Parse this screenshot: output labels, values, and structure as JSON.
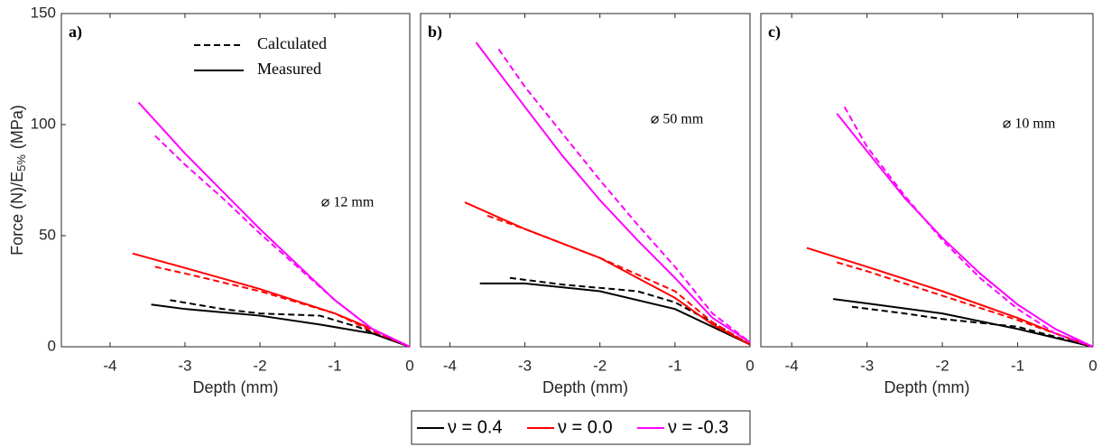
{
  "chart_data": [
    {
      "type": "line",
      "annotation": "a)",
      "diameter": "⌀ 12 mm",
      "xlabel": "Depth (mm)",
      "ylabel": {
        "main": "Force (N)/E",
        "sub": "5%",
        "unit": "(MPa)"
      },
      "xlim": [
        -4.65,
        0
      ],
      "xticks": [
        -4,
        -3,
        -2,
        -1,
        0
      ],
      "ylim": [
        0,
        150
      ],
      "yticks": [
        0,
        50,
        100,
        150
      ],
      "line_styles": [
        {
          "label": "Calculated",
          "dash": true
        },
        {
          "label": "Measured",
          "dash": false
        }
      ],
      "series": [
        {
          "name": "ν = 0.4",
          "color": "#000000",
          "dash": false,
          "x": [
            -3.45,
            -3,
            -2,
            -1.2,
            -0.5,
            0
          ],
          "values": [
            19,
            17,
            14,
            10,
            6,
            0
          ]
        },
        {
          "name": "ν = 0.4",
          "color": "#000000",
          "dash": true,
          "x": [
            -3.2,
            -2.5,
            -2,
            -1.2,
            -0.7,
            0
          ],
          "values": [
            21,
            17,
            15,
            14,
            9,
            0
          ]
        },
        {
          "name": "ν = 0.0",
          "color": "#ff0000",
          "dash": false,
          "x": [
            -3.7,
            -3,
            -2,
            -1,
            -0.5,
            0
          ],
          "values": [
            42,
            35.5,
            26,
            15,
            8,
            0
          ]
        },
        {
          "name": "ν = 0.0",
          "color": "#ff0000",
          "dash": true,
          "x": [
            -3.4,
            -3,
            -2,
            -1,
            -0.5,
            0
          ],
          "values": [
            36,
            33,
            25,
            15,
            7,
            0
          ]
        },
        {
          "name": "ν = -0.3",
          "color": "#ff00ff",
          "dash": false,
          "x": [
            -3.62,
            -3,
            -2.5,
            -2,
            -1.5,
            -1,
            -0.5,
            0
          ],
          "values": [
            110,
            87,
            70,
            53,
            37,
            21,
            8,
            0
          ]
        },
        {
          "name": "ν = -0.3",
          "color": "#ff00ff",
          "dash": true,
          "x": [
            -3.4,
            -3,
            -2.5,
            -2,
            -1.5,
            -1,
            -0.5,
            0
          ],
          "values": [
            95,
            82,
            67,
            51,
            36,
            21,
            8,
            0
          ]
        }
      ]
    },
    {
      "type": "line",
      "annotation": "b)",
      "diameter": "⌀ 50 mm",
      "xlabel": "Depth (mm)",
      "xlim": [
        -4.39,
        0
      ],
      "xticks": [
        -4,
        -3,
        -2,
        -1,
        0
      ],
      "ylim": [
        0,
        150
      ],
      "series": [
        {
          "name": "ν = 0.4",
          "color": "#000000",
          "dash": false,
          "x": [
            -3.6,
            -3,
            -2,
            -1,
            -0.5,
            0
          ],
          "values": [
            28.5,
            28.5,
            25,
            17,
            9,
            1
          ]
        },
        {
          "name": "ν = 0.4",
          "color": "#000000",
          "dash": true,
          "x": [
            -3.2,
            -2.5,
            -1.5,
            -1,
            -0.5,
            0
          ],
          "values": [
            31,
            28,
            25,
            20,
            11,
            1
          ]
        },
        {
          "name": "ν = 0.0",
          "color": "#ff0000",
          "dash": false,
          "x": [
            -3.8,
            -3,
            -2,
            -1,
            -0.5,
            0
          ],
          "values": [
            65,
            53,
            40,
            22,
            10,
            1
          ]
        },
        {
          "name": "ν = 0.0",
          "color": "#ff0000",
          "dash": true,
          "x": [
            -3.5,
            -3,
            -2,
            -1,
            -0.5,
            0
          ],
          "values": [
            59,
            53,
            40,
            25,
            11,
            1
          ]
        },
        {
          "name": "ν = -0.3",
          "color": "#ff00ff",
          "dash": false,
          "x": [
            -3.65,
            -3,
            -2.5,
            -2,
            -1.5,
            -1,
            -0.5,
            0
          ],
          "values": [
            137,
            108,
            86,
            66,
            48,
            31,
            13,
            2
          ]
        },
        {
          "name": "ν = -0.3",
          "color": "#ff00ff",
          "dash": true,
          "x": [
            -3.35,
            -3,
            -2.5,
            -2,
            -1.5,
            -1,
            -0.5,
            0
          ],
          "values": [
            134,
            117,
            96,
            75,
            55,
            36,
            15,
            2
          ]
        }
      ]
    },
    {
      "type": "line",
      "annotation": "c)",
      "diameter": "⌀ 10 mm",
      "xlabel": "Depth (mm)",
      "xlim": [
        -4.41,
        0
      ],
      "xticks": [
        -4,
        -3,
        -2,
        -1,
        0
      ],
      "ylim": [
        0,
        150
      ],
      "series": [
        {
          "name": "ν = 0.4",
          "color": "#000000",
          "dash": false,
          "x": [
            -3.45,
            -3,
            -2,
            -1,
            0
          ],
          "values": [
            21.5,
            19.5,
            15,
            8,
            0
          ]
        },
        {
          "name": "ν = 0.4",
          "color": "#000000",
          "dash": true,
          "x": [
            -3.2,
            -2.5,
            -2,
            -1,
            0
          ],
          "values": [
            18,
            15,
            12.5,
            9,
            0
          ]
        },
        {
          "name": "ν = 0.0",
          "color": "#ff0000",
          "dash": false,
          "x": [
            -3.8,
            -3,
            -2,
            -1,
            -0.5,
            0
          ],
          "values": [
            44.5,
            36,
            25,
            13,
            6,
            0
          ]
        },
        {
          "name": "ν = 0.0",
          "color": "#ff0000",
          "dash": true,
          "x": [
            -3.4,
            -3,
            -2,
            -1,
            0
          ],
          "values": [
            38,
            34,
            23,
            12,
            0
          ]
        },
        {
          "name": "ν = -0.3",
          "color": "#ff00ff",
          "dash": false,
          "x": [
            -3.4,
            -3,
            -2.5,
            -2,
            -1.5,
            -1,
            -0.5,
            0
          ],
          "values": [
            105,
            88,
            67,
            49,
            33,
            19,
            8,
            0
          ]
        },
        {
          "name": "ν = -0.3",
          "color": "#ff00ff",
          "dash": true,
          "x": [
            -3.3,
            -3,
            -2.5,
            -2,
            -1.5,
            -1,
            -0.5,
            0
          ],
          "values": [
            108,
            90,
            68,
            48,
            31,
            17,
            6,
            0
          ]
        }
      ]
    }
  ],
  "legend": {
    "position": "bottom",
    "entries": [
      {
        "name": "ν = 0.4",
        "color": "#000000"
      },
      {
        "name": "ν = 0.0",
        "color": "#ff0000"
      },
      {
        "name": "ν = -0.3",
        "color": "#ff00ff"
      }
    ]
  }
}
